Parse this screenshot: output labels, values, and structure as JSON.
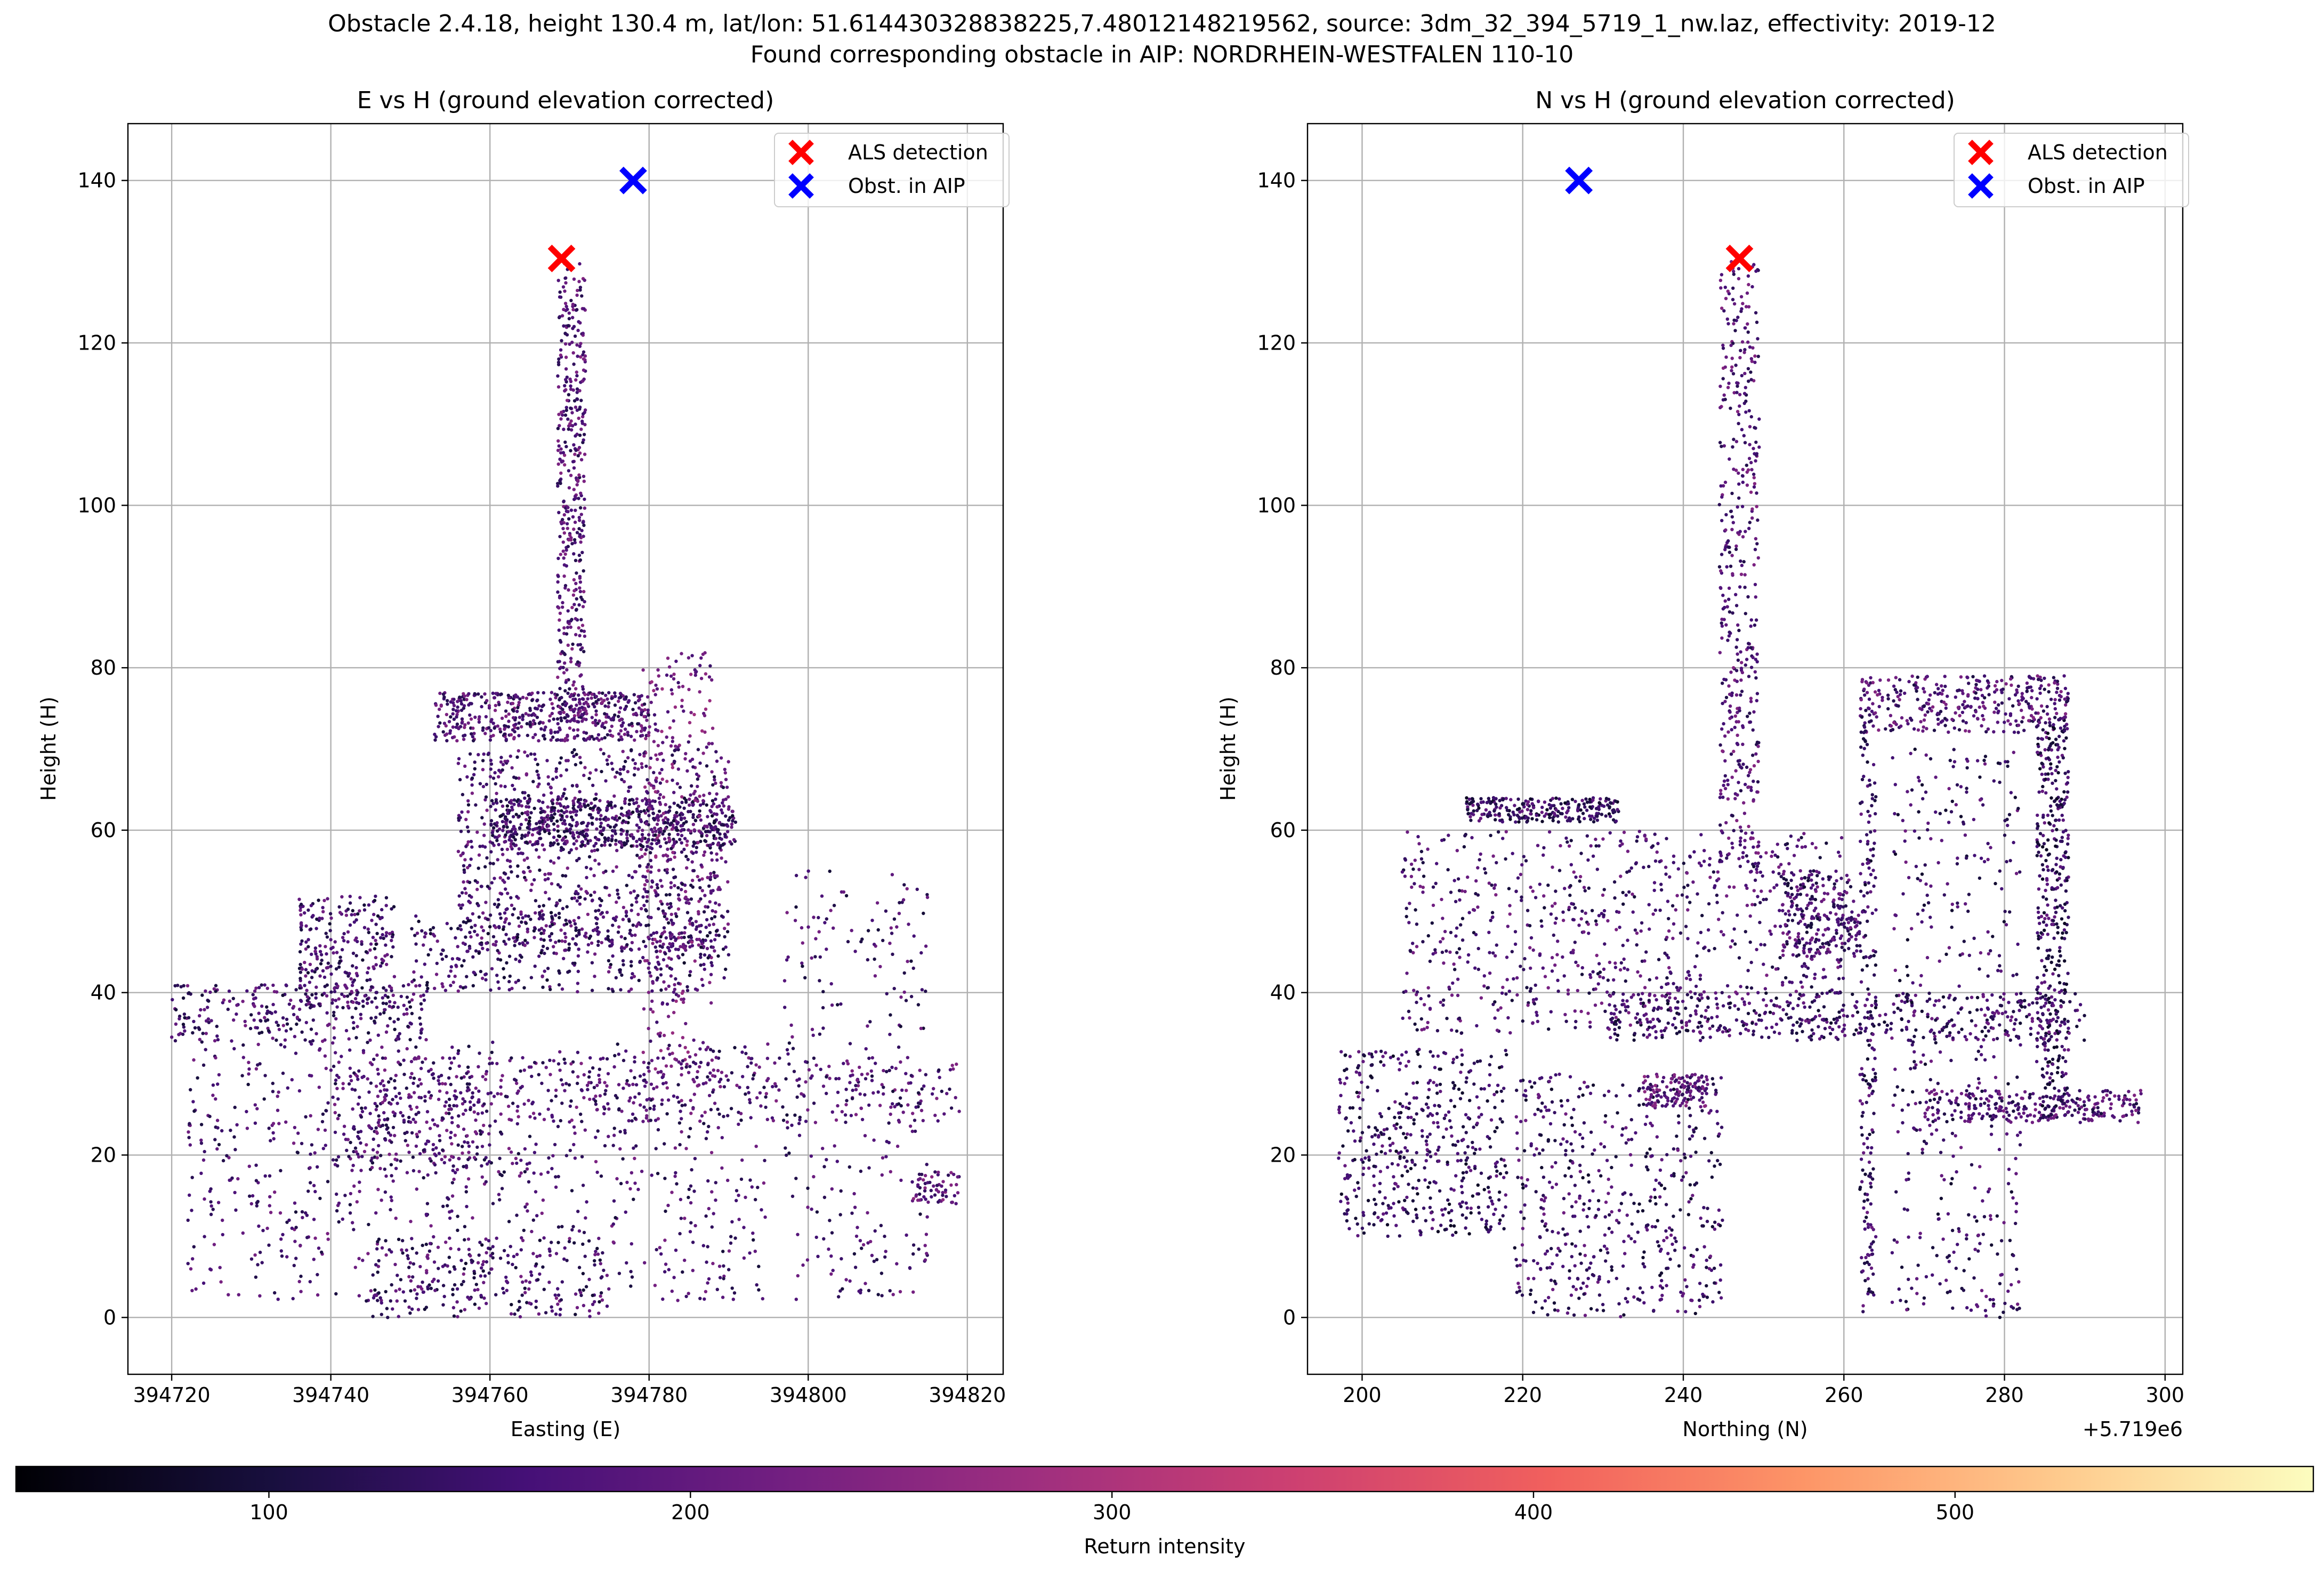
{
  "suptitle": {
    "line1": "Obstacle 2.4.18, height 130.4 m, lat/lon: 51.614430328838225,7.48012148219562, source: 3dm_32_394_5719_1_nw.laz, effectivity: 2019-12",
    "line2": "Found corresponding obstacle in AIP: NORDRHEIN-WESTFALEN 110-10"
  },
  "colors": {
    "als_marker": "#ff0000",
    "aip_marker": "#0000ff",
    "grid": "#b0b0b0",
    "colormap": [
      "#000004",
      "#180f3e",
      "#451077",
      "#721f81",
      "#9f2f7f",
      "#cd4071",
      "#f1605d",
      "#fd9567",
      "#feca8d",
      "#fcfdbf"
    ]
  },
  "colorbar": {
    "label": "Return intensity",
    "range": [
      40,
      585
    ],
    "ticks": [
      100,
      200,
      300,
      400,
      500
    ]
  },
  "chart_data": [
    {
      "type": "scatter",
      "title": "E vs H (ground elevation corrected)",
      "xlabel": "Easting (E)",
      "ylabel": "Height (H)",
      "xlim": [
        394714.5,
        394824.5
      ],
      "ylim": [
        -7,
        147
      ],
      "xticks": [
        394720,
        394740,
        394760,
        394780,
        394800,
        394820
      ],
      "xtick_labels": [
        "394720",
        "394740",
        "394760",
        "394780",
        "394800",
        "394820"
      ],
      "yticks": [
        0,
        20,
        40,
        60,
        80,
        100,
        120,
        140
      ],
      "offset_label": "",
      "grid": true,
      "legend": {
        "position": "top-right",
        "entries": [
          "ALS detection",
          "Obst. in AIP"
        ]
      },
      "markers": [
        {
          "name": "ALS detection",
          "x": 394769,
          "y": 130.4,
          "color": "#ff0000"
        },
        {
          "name": "Obst. in AIP",
          "x": 394778,
          "y": 140,
          "color": "#0000ff"
        }
      ],
      "point_cloud": [
        {
          "x": [
            394768.5,
            394772
          ],
          "y": [
            73,
            130
          ],
          "intensity": 180,
          "density": 420
        },
        {
          "x": [
            394753,
            394780
          ],
          "y": [
            71,
            77
          ],
          "intensity": 175,
          "density": 480
        },
        {
          "x": [
            394756,
            394790
          ],
          "y": [
            45,
            70
          ],
          "intensity": 165,
          "density": 900
        },
        {
          "x": [
            394760,
            394791
          ],
          "y": [
            58,
            64
          ],
          "intensity": 150,
          "density": 520
        },
        {
          "x": [
            394779,
            394788
          ],
          "y": [
            30,
            82
          ],
          "intensity": 210,
          "density": 320
        },
        {
          "x": [
            394720,
            394752
          ],
          "y": [
            34,
            41
          ],
          "intensity": 160,
          "density": 260
        },
        {
          "x": [
            394736,
            394748
          ],
          "y": [
            38,
            52
          ],
          "intensity": 155,
          "density": 260
        },
        {
          "x": [
            394722,
            394795
          ],
          "y": [
            2,
            34
          ],
          "intensity": 165,
          "density": 900
        },
        {
          "x": [
            394745,
            394819
          ],
          "y": [
            24,
            32
          ],
          "intensity": 175,
          "density": 380
        },
        {
          "x": [
            394797,
            394815
          ],
          "y": [
            2,
            55
          ],
          "intensity": 160,
          "density": 260
        },
        {
          "x": [
            394750,
            394790
          ],
          "y": [
            40,
            50
          ],
          "intensity": 150,
          "density": 360
        },
        {
          "x": [
            394740,
            394760
          ],
          "y": [
            18,
            30
          ],
          "intensity": 170,
          "density": 200
        },
        {
          "x": [
            394813,
            394819
          ],
          "y": [
            14,
            18
          ],
          "intensity": 190,
          "density": 60
        },
        {
          "x": [
            394745,
            394775
          ],
          "y": [
            0,
            10
          ],
          "intensity": 150,
          "density": 200
        }
      ]
    },
    {
      "type": "scatter",
      "title": "N vs H (ground elevation corrected)",
      "xlabel": "Northing (N)",
      "ylabel": "Height (H)",
      "xlim": [
        5719193.2,
        5719302.2
      ],
      "ylim": [
        -7,
        147
      ],
      "xticks": [
        5719200,
        5719220,
        5719240,
        5719260,
        5719280,
        5719300
      ],
      "xtick_labels": [
        "200",
        "220",
        "240",
        "260",
        "280",
        "300"
      ],
      "yticks": [
        0,
        20,
        40,
        60,
        80,
        100,
        120,
        140
      ],
      "offset_label": "+5.719e6",
      "grid": true,
      "legend": {
        "position": "top-right",
        "entries": [
          "ALS detection",
          "Obst. in AIP"
        ]
      },
      "markers": [
        {
          "name": "ALS detection",
          "x": 5719247,
          "y": 130.4,
          "color": "#ff0000"
        },
        {
          "name": "Obst. in AIP",
          "x": 5719227,
          "y": 140,
          "color": "#0000ff"
        }
      ],
      "point_cloud": [
        {
          "x": [
            5719244.5,
            5719249.5
          ],
          "y": [
            55,
            130
          ],
          "intensity": 180,
          "density": 420
        },
        {
          "x": [
            5719262,
            5719288
          ],
          "y": [
            72,
            79
          ],
          "intensity": 175,
          "density": 340
        },
        {
          "x": [
            5719284,
            5719288
          ],
          "y": [
            26,
            74
          ],
          "intensity": 140,
          "density": 400
        },
        {
          "x": [
            5719262,
            5719264
          ],
          "y": [
            0,
            74
          ],
          "intensity": 150,
          "density": 200
        },
        {
          "x": [
            5719213,
            5719232
          ],
          "y": [
            61,
            64
          ],
          "intensity": 140,
          "density": 240
        },
        {
          "x": [
            5719205,
            5719260
          ],
          "y": [
            35,
            60
          ],
          "intensity": 165,
          "density": 800
        },
        {
          "x": [
            5719230,
            5719290
          ],
          "y": [
            34,
            40
          ],
          "intensity": 150,
          "density": 420
        },
        {
          "x": [
            5719197,
            5719218
          ],
          "y": [
            10,
            33
          ],
          "intensity": 140,
          "density": 480
        },
        {
          "x": [
            5719219,
            5719245
          ],
          "y": [
            0,
            30
          ],
          "intensity": 150,
          "density": 520
        },
        {
          "x": [
            5719270,
            5719297
          ],
          "y": [
            24,
            28
          ],
          "intensity": 170,
          "density": 260
        },
        {
          "x": [
            5719266,
            5719282
          ],
          "y": [
            0,
            70
          ],
          "intensity": 150,
          "density": 420
        },
        {
          "x": [
            5719235,
            5719243
          ],
          "y": [
            26,
            30
          ],
          "intensity": 190,
          "density": 120
        },
        {
          "x": [
            5719252,
            5719262
          ],
          "y": [
            44,
            55
          ],
          "intensity": 160,
          "density": 240
        }
      ]
    }
  ]
}
